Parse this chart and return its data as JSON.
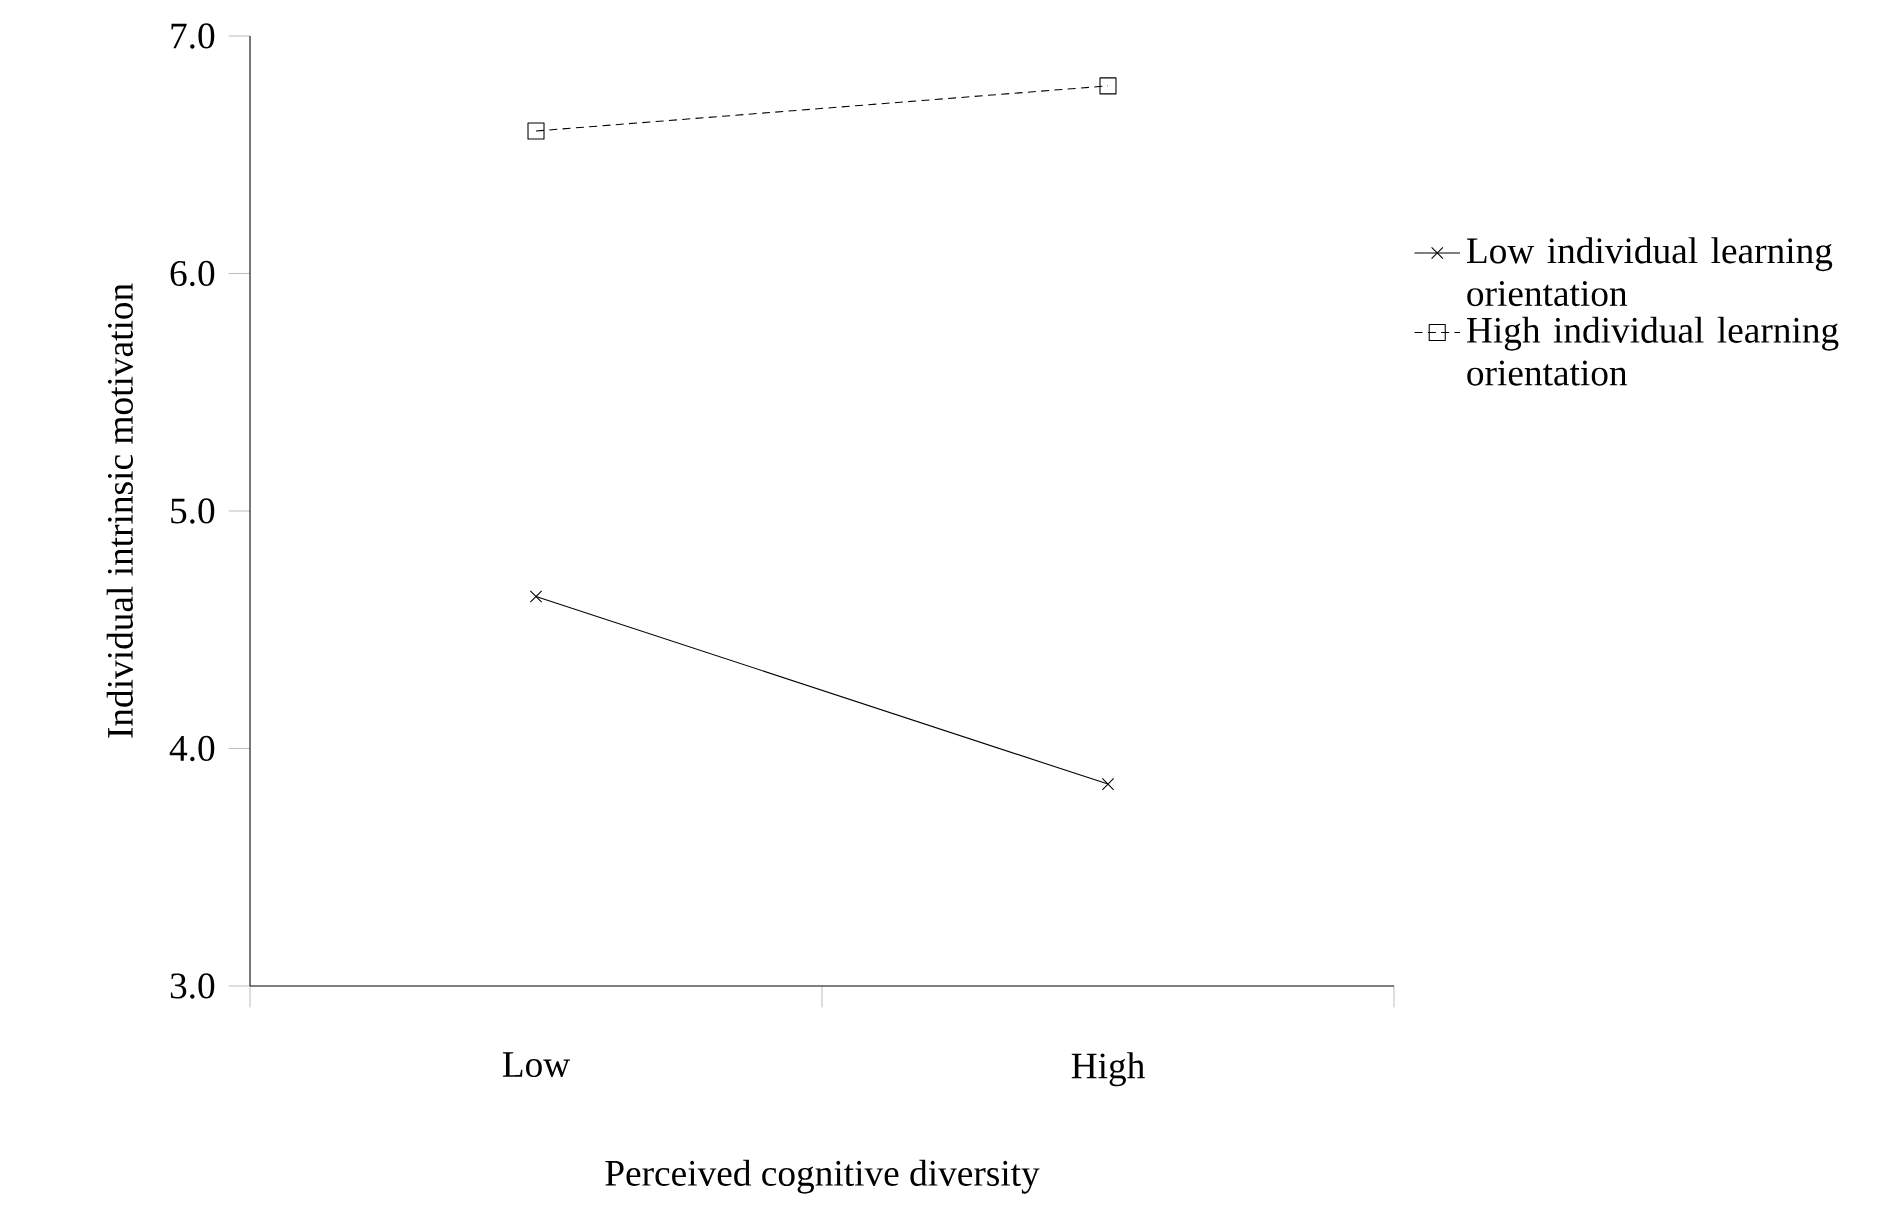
{
  "chart_data": {
    "type": "line",
    "xlabel": "Perceived cognitive diversity",
    "ylabel": "Individual intrinsic motivation",
    "categories": [
      "Low",
      "High"
    ],
    "series": [
      {
        "name": "Low individual learning orientation",
        "color": "#000000",
        "values": [
          4.64,
          3.85
        ],
        "marker": "cross",
        "line_style": "solid"
      },
      {
        "name": "High individual learning orientation",
        "color": "#000000",
        "values": [
          6.6,
          6.79
        ],
        "marker": "square",
        "line_style": "dashed"
      }
    ],
    "ylim": [
      3,
      7
    ],
    "yticks": [
      {
        "value": 3,
        "label": "3.0"
      },
      {
        "value": 4,
        "label": "4.0"
      },
      {
        "value": 5,
        "label": "5.0"
      },
      {
        "value": 6,
        "label": "6.0"
      },
      {
        "value": 7,
        "label": "7.0"
      }
    ],
    "grid": false,
    "legend": "right"
  }
}
